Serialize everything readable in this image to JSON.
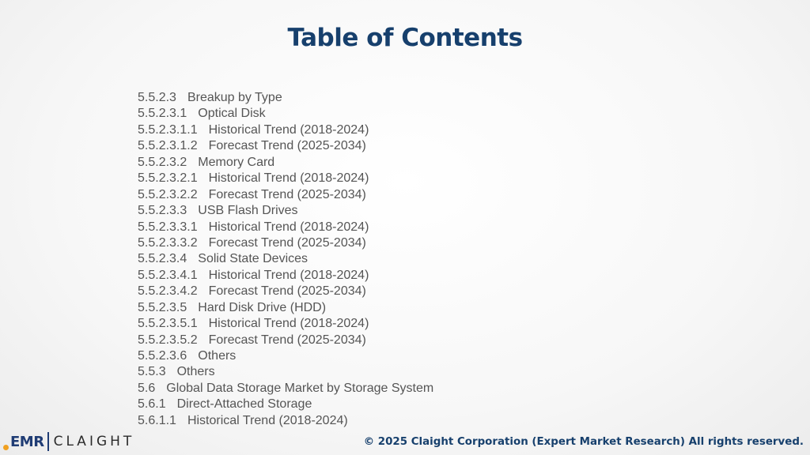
{
  "slide": {
    "title": "Table of Contents"
  },
  "toc": [
    {
      "num": "5.5.2.3",
      "label": "Breakup by Type"
    },
    {
      "num": "5.5.2.3.1",
      "label": "Optical Disk"
    },
    {
      "num": "5.5.2.3.1.1",
      "label": "Historical Trend (2018-2024)"
    },
    {
      "num": "5.5.2.3.1.2",
      "label": "Forecast Trend (2025-2034)"
    },
    {
      "num": "5.5.2.3.2",
      "label": "Memory Card"
    },
    {
      "num": "5.5.2.3.2.1",
      "label": "Historical Trend (2018-2024)"
    },
    {
      "num": "5.5.2.3.2.2",
      "label": "Forecast Trend (2025-2034)"
    },
    {
      "num": "5.5.2.3.3",
      "label": "USB Flash Drives"
    },
    {
      "num": "5.5.2.3.3.1",
      "label": "Historical Trend (2018-2024)"
    },
    {
      "num": "5.5.2.3.3.2",
      "label": "Forecast Trend (2025-2034)"
    },
    {
      "num": "5.5.2.3.4",
      "label": "Solid State Devices"
    },
    {
      "num": "5.5.2.3.4.1",
      "label": "Historical Trend (2018-2024)"
    },
    {
      "num": "5.5.2.3.4.2",
      "label": "Forecast Trend (2025-2034)"
    },
    {
      "num": "5.5.2.3.5",
      "label": "Hard Disk Drive (HDD)"
    },
    {
      "num": "5.5.2.3.5.1",
      "label": "Historical Trend (2018-2024)"
    },
    {
      "num": "5.5.2.3.5.2",
      "label": "Forecast Trend (2025-2034)"
    },
    {
      "num": "5.5.2.3.6",
      "label": "Others"
    },
    {
      "num": "5.5.3",
      "label": "Others"
    },
    {
      "num": "5.6",
      "label": "Global Data Storage Market by Storage System"
    },
    {
      "num": "5.6.1",
      "label": "Direct-Attached Storage"
    },
    {
      "num": "5.6.1.1",
      "label": "Historical Trend (2018-2024)"
    }
  ],
  "footer": {
    "logo_left": "EMR",
    "logo_right": "CLAIGHT",
    "copyright": "© 2025 Claight Corporation (Expert Market Research) All rights reserved."
  },
  "colors": {
    "title": "#17406d",
    "body_text": "#555555",
    "logo_accent": "#f0a020"
  }
}
